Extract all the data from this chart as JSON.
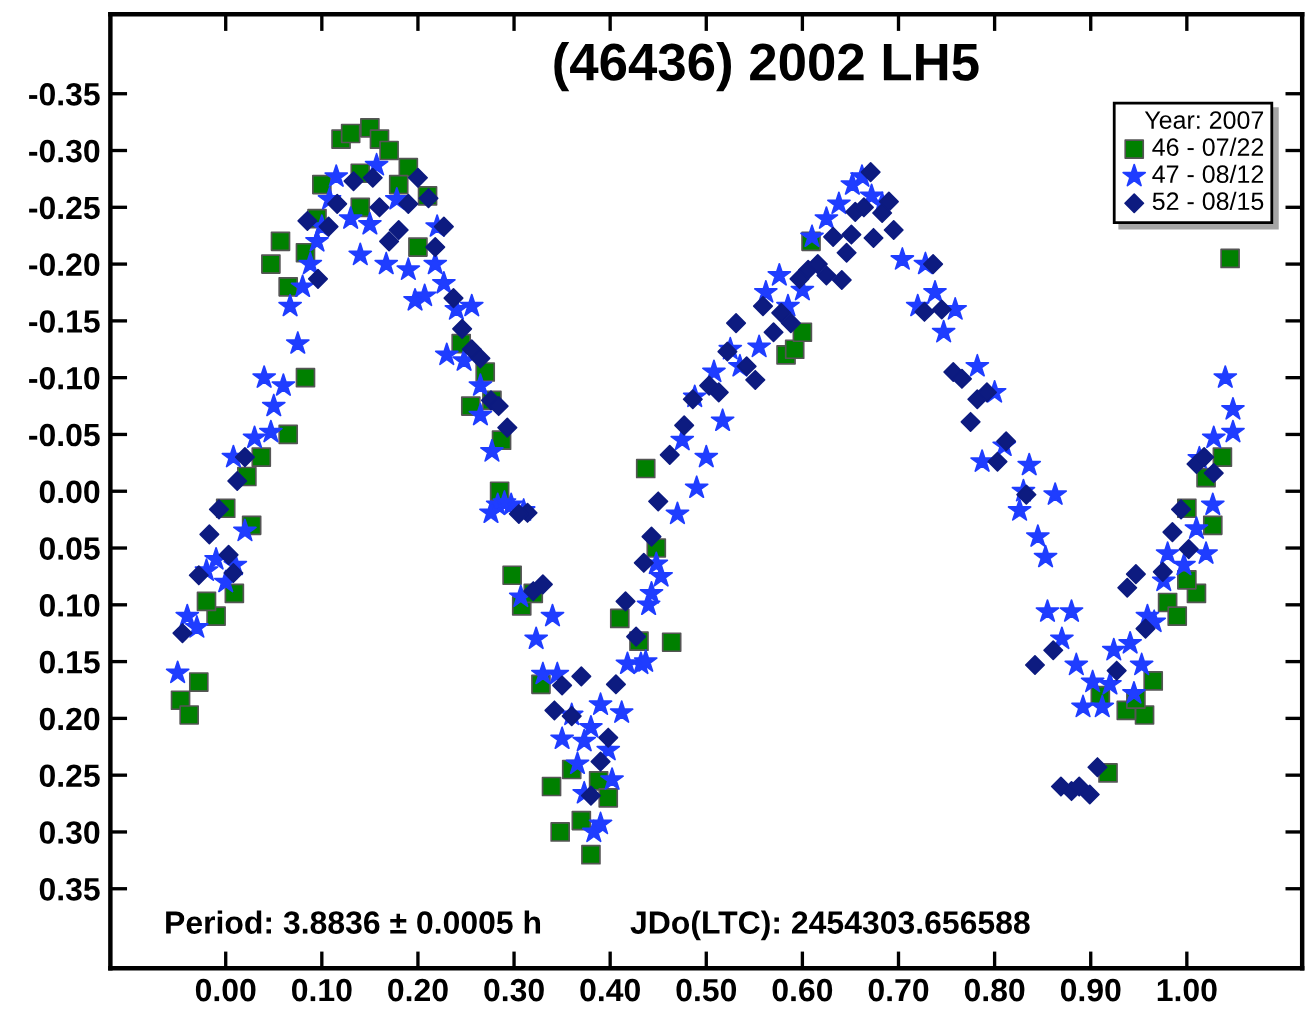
{
  "chart_data": {
    "type": "scatter",
    "title": "(46436) 2002 LH5",
    "legend_title": "Year: 2007",
    "legend": "top right",
    "grid": false,
    "xlim": [
      -0.12,
      1.12
    ],
    "ylim": [
      0.42,
      -0.42
    ],
    "xticks": [
      {
        "value": 0,
        "label": "0.00"
      },
      {
        "value": 0.1,
        "label": "0.10"
      },
      {
        "value": 0.2,
        "label": "0.20"
      },
      {
        "value": 0.3,
        "label": "0.30"
      },
      {
        "value": 0.4,
        "label": "0.40"
      },
      {
        "value": 0.5,
        "label": "0.50"
      },
      {
        "value": 0.6,
        "label": "0.60"
      },
      {
        "value": 0.7,
        "label": "0.70"
      },
      {
        "value": 0.8,
        "label": "0.80"
      },
      {
        "value": 0.9,
        "label": "0.90"
      },
      {
        "value": 1.0,
        "label": "1.00"
      }
    ],
    "yticks": [
      {
        "value": -0.35,
        "label": "-0.35"
      },
      {
        "value": -0.3,
        "label": "-0.30"
      },
      {
        "value": -0.25,
        "label": "-0.25"
      },
      {
        "value": -0.2,
        "label": "-0.20"
      },
      {
        "value": -0.15,
        "label": "-0.15"
      },
      {
        "value": -0.1,
        "label": "-0.10"
      },
      {
        "value": -0.05,
        "label": "-0.05"
      },
      {
        "value": 0,
        "label": "0.00"
      },
      {
        "value": 0.05,
        "label": "0.05"
      },
      {
        "value": 0.1,
        "label": "0.10"
      },
      {
        "value": 0.15,
        "label": "0.15"
      },
      {
        "value": 0.2,
        "label": "0.20"
      },
      {
        "value": 0.25,
        "label": "0.25"
      },
      {
        "value": 0.3,
        "label": "0.30"
      },
      {
        "value": 0.35,
        "label": "0.35"
      }
    ],
    "annotations": [
      "Period: 3.8836 ± 0.0005 h",
      "JDo(LTC): 2454303.656588"
    ],
    "series": [
      {
        "name": "46 - 07/22",
        "color": "#008000",
        "marker": "square",
        "x": [
          0.047,
          0.057,
          0.065,
          0.083,
          0.065,
          0.037,
          0.022,
          0.0,
          0.1,
          0.12,
          0.13,
          0.15,
          0.16,
          0.17,
          0.19,
          0.14,
          0.18,
          0.21,
          0.2,
          0.083,
          0.245,
          0.27,
          0.255,
          0.277,
          0.287,
          0.285,
          0.437,
          0.14,
          0.095,
          0.027,
          0.009,
          -0.01,
          -0.02,
          -0.028,
          -0.047,
          -0.038,
          0.298,
          0.308,
          0.32,
          0.328,
          0.339,
          0.348,
          0.37,
          0.38,
          0.36,
          0.388,
          0.398,
          0.41,
          0.43,
          0.448,
          0.609,
          0.583,
          0.592,
          0.6,
          1.045,
          1.037,
          1.02,
          1.0,
          1.027,
          0.98,
          0.99,
          1.01,
          1.0,
          0.965,
          0.956,
          0.937,
          0.947,
          0.918,
          0.91,
          0.464
        ],
        "values": [
          -0.2,
          -0.22,
          -0.18,
          -0.1,
          -0.05,
          -0.03,
          -0.013,
          0.015,
          -0.27,
          -0.31,
          -0.315,
          -0.32,
          -0.31,
          -0.3,
          -0.285,
          -0.28,
          -0.27,
          -0.26,
          -0.215,
          -0.21,
          -0.13,
          -0.105,
          -0.075,
          -0.08,
          -0.045,
          0.0,
          -0.02,
          -0.25,
          -0.24,
          0.03,
          0.09,
          0.11,
          0.097,
          0.168,
          0.184,
          0.197,
          0.074,
          0.101,
          0.09,
          0.17,
          0.26,
          0.3,
          0.29,
          0.32,
          0.245,
          0.255,
          0.27,
          0.112,
          0.132,
          0.05,
          -0.22,
          -0.12,
          -0.125,
          -0.14,
          -0.205,
          -0.03,
          -0.012,
          0.015,
          0.03,
          0.098,
          0.11,
          0.09,
          0.078,
          0.167,
          0.197,
          0.193,
          0.183,
          0.248,
          0.18,
          0.133
        ]
      },
      {
        "name": "47 - 08/12",
        "color": "#1f3dff",
        "marker": "star",
        "x": [
          -0.05,
          -0.04,
          -0.03,
          -0.02,
          -0.01,
          0.0,
          0.01,
          0.02,
          0.008,
          0.03,
          0.047,
          0.05,
          0.04,
          0.06,
          0.075,
          0.067,
          0.08,
          0.088,
          0.095,
          0.1,
          0.108,
          0.115,
          0.13,
          0.14,
          0.15,
          0.157,
          0.167,
          0.178,
          0.19,
          0.197,
          0.207,
          0.218,
          0.22,
          0.227,
          0.23,
          0.24,
          0.248,
          0.256,
          0.265,
          0.265,
          0.277,
          0.283,
          0.297,
          0.31,
          0.276,
          0.29,
          0.307,
          0.323,
          0.33,
          0.345,
          0.34,
          0.35,
          0.36,
          0.366,
          0.373,
          0.38,
          0.373,
          0.383,
          0.39,
          0.39,
          0.398,
          0.402,
          0.412,
          0.418,
          0.432,
          0.44,
          0.448,
          0.453,
          0.443,
          0.437,
          0.47,
          0.49,
          0.475,
          0.5,
          0.488,
          0.517,
          0.508,
          0.535,
          0.525,
          0.555,
          0.562,
          0.576,
          0.585,
          0.6,
          0.61,
          0.625,
          0.638,
          0.652,
          0.662,
          0.672,
          0.683,
          0.704,
          0.728,
          0.72,
          0.738,
          0.759,
          0.747,
          0.782,
          0.8,
          0.81,
          0.787,
          0.836,
          0.83,
          0.863,
          0.826,
          0.845,
          0.853,
          0.855,
          0.88,
          0.87,
          0.885,
          0.892,
          0.902,
          0.912,
          0.92,
          0.924,
          0.941,
          0.945,
          0.953,
          0.959,
          0.966,
          0.98,
          0.976,
          0.997,
          1.01,
          1.02,
          1.027,
          1.013,
          1.028,
          1.04,
          1.048,
          1.048
        ],
        "values": [
          0.16,
          0.11,
          0.12,
          0.07,
          0.06,
          0.08,
          0.065,
          0.035,
          -0.03,
          -0.047,
          -0.052,
          -0.075,
          -0.1,
          -0.093,
          -0.13,
          -0.163,
          -0.18,
          -0.2,
          -0.22,
          -0.233,
          -0.257,
          -0.277,
          -0.24,
          -0.208,
          -0.235,
          -0.287,
          -0.2,
          -0.257,
          -0.195,
          -0.168,
          -0.172,
          -0.2,
          -0.233,
          -0.183,
          -0.12,
          -0.16,
          -0.115,
          -0.163,
          -0.093,
          -0.067,
          -0.035,
          0.012,
          0.012,
          0.017,
          0.019,
          0.01,
          0.093,
          0.13,
          0.161,
          0.161,
          0.11,
          0.218,
          0.197,
          0.24,
          0.22,
          0.208,
          0.266,
          0.3,
          0.293,
          0.188,
          0.228,
          0.254,
          0.195,
          0.152,
          0.152,
          0.1,
          0.064,
          0.075,
          0.09,
          0.15,
          0.02,
          -0.003,
          -0.045,
          -0.03,
          -0.083,
          -0.062,
          -0.105,
          -0.11,
          -0.125,
          -0.127,
          -0.175,
          -0.19,
          -0.163,
          -0.177,
          -0.224,
          -0.24,
          -0.253,
          -0.27,
          -0.277,
          -0.26,
          -0.253,
          -0.204,
          -0.2,
          -0.163,
          -0.175,
          -0.16,
          -0.14,
          -0.11,
          -0.087,
          -0.04,
          -0.026,
          -0.023,
          0.0,
          0.003,
          0.017,
          0.04,
          0.058,
          0.106,
          0.106,
          0.13,
          0.153,
          0.19,
          0.168,
          0.19,
          0.17,
          0.14,
          0.134,
          0.178,
          0.153,
          0.11,
          0.115,
          0.055,
          0.079,
          0.065,
          0.033,
          0.055,
          0.012,
          -0.029,
          -0.047,
          -0.1,
          -0.072,
          -0.052
        ]
      },
      {
        "name": "52 - 08/15",
        "color": "#0d1b80",
        "marker": "diamond",
        "x": [
          -0.045,
          -0.028,
          -0.017,
          -0.007,
          0.003,
          0.008,
          0.012,
          0.02,
          0.096,
          0.085,
          0.107,
          0.116,
          0.133,
          0.153,
          0.16,
          0.17,
          0.18,
          0.19,
          0.2,
          0.211,
          0.218,
          0.227,
          0.237,
          0.246,
          0.256,
          0.265,
          0.276,
          0.284,
          0.293,
          0.314,
          0.305,
          0.32,
          0.33,
          0.35,
          0.342,
          0.36,
          0.37,
          0.38,
          0.39,
          0.398,
          0.406,
          0.416,
          0.427,
          0.435,
          0.443,
          0.45,
          0.462,
          0.477,
          0.486,
          0.503,
          0.513,
          0.522,
          0.531,
          0.542,
          0.551,
          0.559,
          0.57,
          0.578,
          0.588,
          0.597,
          0.606,
          0.616,
          0.625,
          0.632,
          0.641,
          0.646,
          0.651,
          0.655,
          0.664,
          0.671,
          0.674,
          0.683,
          0.69,
          0.695,
          0.727,
          0.736,
          0.745,
          0.757,
          0.766,
          0.782,
          0.792,
          0.775,
          0.803,
          0.812,
          0.833,
          0.842,
          0.861,
          0.869,
          0.88,
          0.888,
          0.899,
          0.907,
          0.927,
          0.938,
          0.947,
          0.957,
          0.975,
          0.985,
          0.994,
          1.002,
          1.01,
          1.018,
          1.028
        ],
        "values": [
          0.125,
          0.074,
          0.038,
          0.016,
          0.056,
          0.072,
          -0.009,
          -0.03,
          -0.187,
          -0.238,
          -0.233,
          -0.253,
          -0.273,
          -0.276,
          -0.25,
          -0.22,
          -0.23,
          -0.253,
          -0.276,
          -0.258,
          -0.215,
          -0.233,
          -0.17,
          -0.143,
          -0.125,
          -0.117,
          -0.08,
          -0.075,
          -0.056,
          0.019,
          0.02,
          0.088,
          0.082,
          0.171,
          0.193,
          0.198,
          0.163,
          0.268,
          0.238,
          0.217,
          0.17,
          0.097,
          0.128,
          0.063,
          0.04,
          0.009,
          -0.032,
          -0.058,
          -0.081,
          -0.093,
          -0.087,
          -0.123,
          -0.148,
          -0.11,
          -0.098,
          -0.163,
          -0.14,
          -0.157,
          -0.148,
          -0.187,
          -0.195,
          -0.2,
          -0.19,
          -0.224,
          -0.186,
          -0.21,
          -0.226,
          -0.246,
          -0.25,
          -0.281,
          -0.223,
          -0.245,
          -0.255,
          -0.23,
          -0.158,
          -0.2,
          -0.16,
          -0.105,
          -0.099,
          -0.081,
          -0.087,
          -0.061,
          -0.026,
          -0.044,
          0.003,
          0.153,
          0.14,
          0.26,
          0.264,
          0.26,
          0.267,
          0.243,
          0.158,
          0.085,
          0.073,
          0.121,
          0.071,
          0.036,
          0.016,
          0.051,
          -0.024,
          -0.03,
          -0.016
        ]
      }
    ]
  }
}
